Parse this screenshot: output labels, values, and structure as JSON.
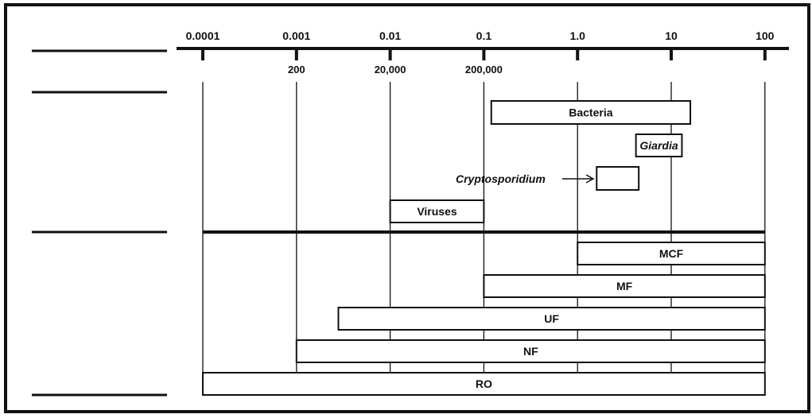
{
  "colors": {
    "ink": "#111111",
    "background": "#ffffff"
  },
  "axis": {
    "scale": "log10",
    "top_ticks": [
      {
        "value": 0.0001,
        "label": "0.0001"
      },
      {
        "value": 0.001,
        "label": "0.001"
      },
      {
        "value": 0.01,
        "label": "0.01"
      },
      {
        "value": 0.1,
        "label": "0.1"
      },
      {
        "value": 1,
        "label": "1.0"
      },
      {
        "value": 10,
        "label": "10"
      },
      {
        "value": 100,
        "label": "100"
      }
    ],
    "bottom_ticks": [
      {
        "value": 0.001,
        "label": "200"
      },
      {
        "value": 0.01,
        "label": "20,000"
      },
      {
        "value": 0.1,
        "label": "200,000"
      }
    ]
  },
  "row_labels": [
    "",
    "",
    "",
    ""
  ],
  "organisms": [
    {
      "label": "Bacteria",
      "min": 0.12,
      "max": 16,
      "italic": false
    },
    {
      "label": "Giardia",
      "min": 4.2,
      "max": 13,
      "italic": true
    },
    {
      "label": "",
      "min": 1.6,
      "max": 4.5,
      "italic": false
    },
    {
      "label": "Viruses",
      "min": 0.01,
      "max": 0.1,
      "italic": false
    }
  ],
  "annotation": {
    "label": "Cryptosporidium",
    "italic": true
  },
  "processes": [
    {
      "label": "MCF",
      "min": 1,
      "max": 100
    },
    {
      "label": "MF",
      "min": 0.1,
      "max": 100
    },
    {
      "label": "UF",
      "min": 0.0028,
      "max": 100
    },
    {
      "label": "NF",
      "min": 0.001,
      "max": 100
    },
    {
      "label": "RO",
      "min": 0.0001,
      "max": 100
    }
  ]
}
